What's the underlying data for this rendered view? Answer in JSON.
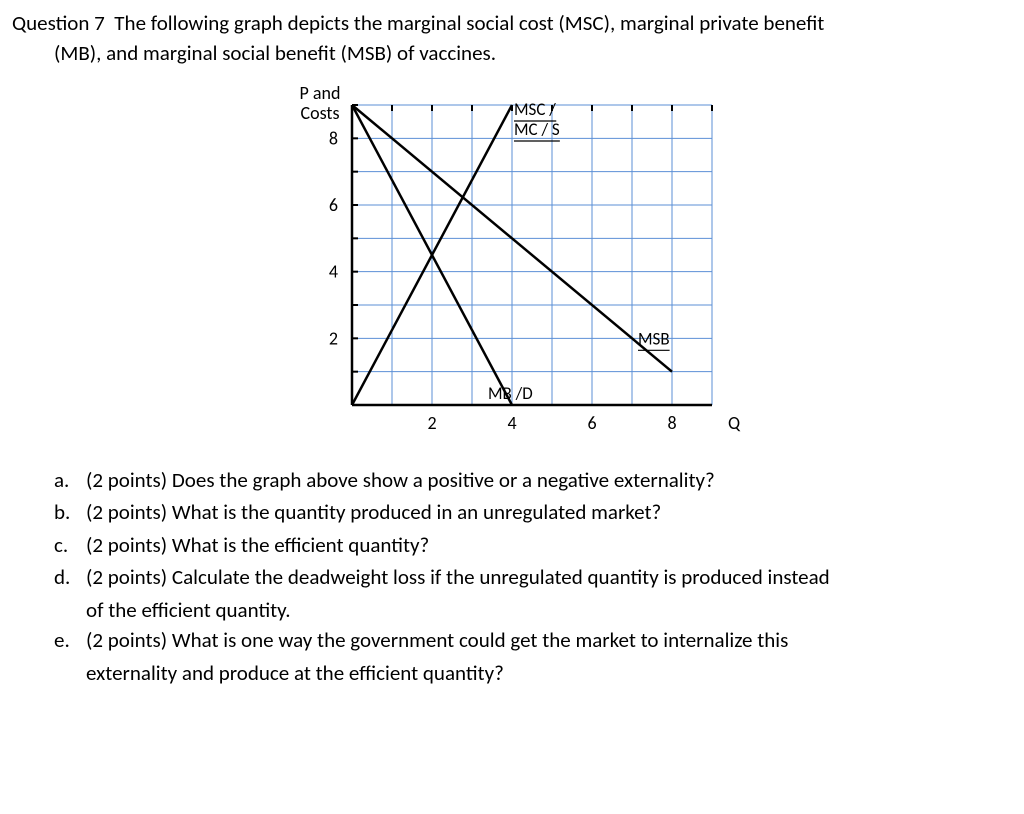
{
  "question": {
    "number": "Question 7",
    "line1": "The following graph depicts the marginal social cost (MSC), marginal private benefit",
    "line2": "(MB), and marginal social benefit (MSB) of vaccines."
  },
  "chart": {
    "type": "line",
    "background_color": "#ffffff",
    "grid_color": "#5b8fd6",
    "axis_color": "#000000",
    "line_color": "#000000",
    "line_width": 2.5,
    "font_size_axis_title": 18,
    "font_size_tick": 18,
    "font_size_curve_label": 17,
    "y_axis_title_line1": "P and",
    "y_axis_title_line2": "Costs",
    "x_axis_title": "Q",
    "x_ticks": [
      0,
      1,
      2,
      3,
      4,
      5,
      6,
      7,
      8,
      9
    ],
    "x_tick_labels": {
      "2": "2",
      "4": "4",
      "6": "6",
      "8": "8"
    },
    "y_ticks": [
      0,
      1,
      2,
      3,
      4,
      5,
      6,
      7,
      8,
      9
    ],
    "y_tick_labels": {
      "2": "2",
      "4": "4",
      "6": "6",
      "8": "8"
    },
    "xlim": [
      0,
      9
    ],
    "ylim": [
      0,
      9
    ],
    "curves": {
      "msc": {
        "label_line1": "MSC /",
        "label_line2": "MC / S",
        "underline": true,
        "points": [
          [
            0,
            0
          ],
          [
            4,
            9
          ]
        ]
      },
      "mb": {
        "label": "MB /D",
        "underline": true,
        "points": [
          [
            0,
            9
          ],
          [
            4,
            0
          ]
        ]
      },
      "msb": {
        "label": "MSB",
        "underline": true,
        "points": [
          [
            0,
            9
          ],
          [
            8,
            1
          ]
        ]
      }
    }
  },
  "subparts": {
    "a": {
      "letter": "a.",
      "points": "(2 points)",
      "text": "Does the graph above show a positive or a negative externality?"
    },
    "b": {
      "letter": "b.",
      "points": "(2 points)",
      "text": "What is the quantity produced in an unregulated market?"
    },
    "c": {
      "letter": "c.",
      "points": "(2 points)",
      "text": "What is the efficient quantity?"
    },
    "d": {
      "letter": "d.",
      "points": "(2 points)",
      "text": "Calculate the deadweight loss if the unregulated quantity is produced instead",
      "cont": "of the efficient quantity."
    },
    "e": {
      "letter": "e.",
      "points": "(2 points)",
      "text": "What is one way the government could get the market to internalize this",
      "cont": "externality and produce at the efficient quantity?"
    }
  }
}
